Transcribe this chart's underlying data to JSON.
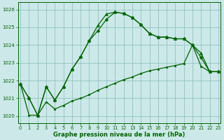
{
  "line1_x": [
    0,
    1,
    2,
    3,
    4,
    5,
    6,
    7,
    8,
    9,
    10,
    11,
    12,
    13,
    14,
    15,
    16,
    17,
    18,
    19,
    20,
    21,
    22,
    23
  ],
  "line1_y": [
    1021.8,
    1021.0,
    1020.05,
    1021.65,
    1020.9,
    1021.65,
    1022.65,
    1023.35,
    1024.25,
    1024.8,
    1025.45,
    1025.85,
    1025.78,
    1025.55,
    1025.15,
    1024.65,
    1024.45,
    1024.45,
    1024.35,
    1024.35,
    1024.0,
    1023.3,
    1022.5,
    1022.5
  ],
  "line2_x": [
    0,
    1,
    2,
    3,
    4,
    5,
    6,
    7,
    8,
    9,
    10,
    11,
    12,
    13,
    14,
    15,
    16,
    17,
    18,
    19,
    20,
    21,
    22,
    23
  ],
  "line2_y": [
    1021.8,
    1021.0,
    1020.05,
    1021.65,
    1020.9,
    1021.65,
    1022.65,
    1023.35,
    1024.25,
    1025.1,
    1025.75,
    1025.85,
    1025.78,
    1025.55,
    1025.15,
    1024.65,
    1024.45,
    1024.45,
    1024.35,
    1024.35,
    1024.0,
    1023.55,
    1022.5,
    1022.5
  ],
  "line3_x": [
    0,
    1,
    2,
    3,
    4,
    5,
    6,
    7,
    8,
    9,
    10,
    11,
    12,
    13,
    14,
    15,
    16,
    17,
    18,
    19,
    20,
    21,
    22,
    23
  ],
  "line3_y": [
    1021.8,
    1020.05,
    1020.05,
    1020.8,
    1020.4,
    1020.6,
    1020.85,
    1021.0,
    1021.2,
    1021.45,
    1021.65,
    1021.85,
    1022.05,
    1022.2,
    1022.4,
    1022.55,
    1022.65,
    1022.75,
    1022.85,
    1022.95,
    1024.0,
    1022.8,
    1022.5,
    1022.5
  ],
  "ylim": [
    1019.6,
    1026.4
  ],
  "xlim": [
    -0.3,
    23.3
  ],
  "yticks": [
    1020,
    1021,
    1022,
    1023,
    1024,
    1025,
    1026
  ],
  "xticks": [
    0,
    1,
    2,
    3,
    4,
    5,
    6,
    7,
    8,
    9,
    10,
    11,
    12,
    13,
    14,
    15,
    16,
    17,
    18,
    19,
    20,
    21,
    22,
    23
  ],
  "xlabel": "Graphe pression niveau de la mer (hPa)",
  "bg_color": "#cce8e8",
  "grid_color": "#88bbbb",
  "line_color": "#006400",
  "tick_color": "#006400",
  "label_color": "#006400"
}
